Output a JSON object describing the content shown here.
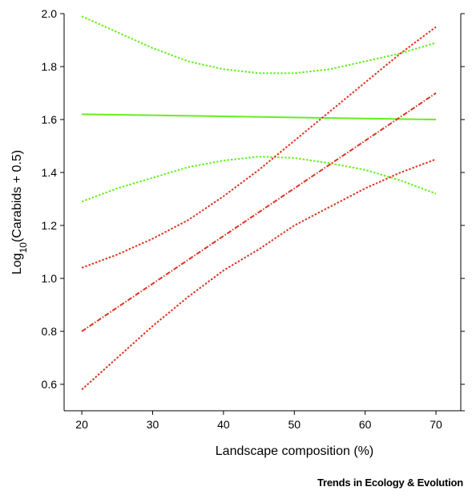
{
  "chart_data": {
    "type": "line",
    "xlabel": "Landscape composition (%)",
    "ylabel": {
      "base": "Log",
      "sub": "10",
      "rest": "(Carabids + 0.5)"
    },
    "xlim": [
      17.5,
      73.5
    ],
    "ylim": [
      0.5,
      2.0
    ],
    "xticks": [
      20,
      30,
      40,
      50,
      60,
      70
    ],
    "yticks": [
      0.6,
      0.8,
      1.0,
      1.2,
      1.4,
      1.6,
      1.8,
      2.0
    ],
    "ytick_labels": [
      "0.6",
      "0.8",
      "1.0",
      "1.2",
      "1.4",
      "1.6",
      "1.8",
      "2.0"
    ],
    "grid": false,
    "series": [
      {
        "color": "#66ee22",
        "style": "solid",
        "x": [
          20,
          70
        ],
        "y": [
          1.62,
          1.6
        ]
      },
      {
        "color": "#66ee22",
        "style": "dotted",
        "x": [
          20,
          25,
          30,
          35,
          40,
          45,
          50,
          55,
          60,
          65,
          70
        ],
        "y": [
          1.99,
          1.93,
          1.87,
          1.82,
          1.79,
          1.775,
          1.775,
          1.79,
          1.82,
          1.85,
          1.89
        ]
      },
      {
        "color": "#66ee22",
        "style": "dotted",
        "x": [
          20,
          25,
          30,
          35,
          40,
          45,
          50,
          55,
          60,
          65,
          70
        ],
        "y": [
          1.29,
          1.34,
          1.38,
          1.42,
          1.445,
          1.46,
          1.455,
          1.435,
          1.41,
          1.37,
          1.32
        ]
      },
      {
        "color": "#dd3322",
        "style": "dashdot",
        "x": [
          20,
          70
        ],
        "y": [
          0.8,
          1.7
        ]
      },
      {
        "color": "#dd3322",
        "style": "dotted",
        "x": [
          20,
          25,
          30,
          35,
          40,
          45,
          50,
          55,
          60,
          65,
          70
        ],
        "y": [
          1.04,
          1.09,
          1.15,
          1.22,
          1.31,
          1.41,
          1.52,
          1.63,
          1.74,
          1.85,
          1.95
        ]
      },
      {
        "color": "#dd3322",
        "style": "dotted",
        "x": [
          20,
          25,
          30,
          35,
          40,
          45,
          50,
          55,
          60,
          65,
          70
        ],
        "y": [
          0.58,
          0.7,
          0.82,
          0.93,
          1.03,
          1.11,
          1.2,
          1.27,
          1.34,
          1.4,
          1.45
        ]
      }
    ]
  },
  "credit": "Trends in Ecology & Evolution"
}
